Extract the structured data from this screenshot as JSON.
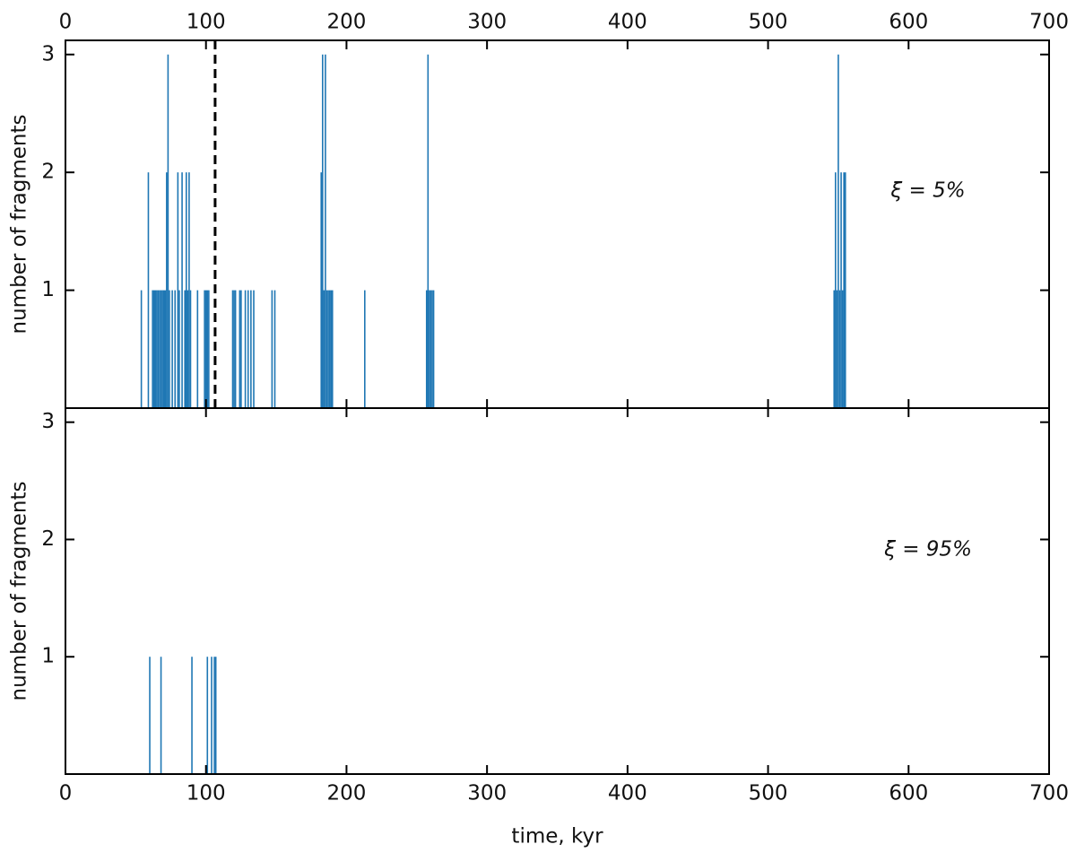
{
  "chart_data": [
    {
      "type": "bar",
      "color": "#1f77b4",
      "x": [
        54,
        59,
        62,
        63,
        64,
        65,
        66,
        67,
        68,
        69,
        70,
        71,
        72,
        73,
        74,
        76,
        78,
        80,
        81,
        83,
        85,
        86,
        87,
        88,
        89,
        94,
        99,
        100,
        101,
        102,
        119,
        120,
        121,
        124,
        125,
        128,
        130,
        132,
        134,
        147,
        149,
        182,
        183,
        184,
        185,
        186,
        187,
        188,
        189,
        190,
        213,
        257,
        258,
        259,
        260,
        261,
        262,
        547,
        548,
        549,
        550,
        551,
        552,
        553,
        554,
        555
      ],
      "values": [
        1,
        2,
        1,
        1,
        1,
        1,
        1,
        1,
        1,
        1,
        1,
        1,
        2,
        3,
        1,
        1,
        1,
        2,
        1,
        2,
        1,
        2,
        1,
        2,
        1,
        1,
        1,
        1,
        1,
        1,
        1,
        1,
        1,
        1,
        1,
        1,
        1,
        1,
        1,
        1,
        1,
        2,
        3,
        1,
        3,
        1,
        1,
        1,
        1,
        1,
        1,
        1,
        3,
        1,
        1,
        1,
        1,
        1,
        2,
        1,
        3,
        1,
        2,
        1,
        2,
        2
      ],
      "xlim": [
        0,
        700
      ],
      "xticks": [
        0,
        100,
        200,
        300,
        400,
        500,
        600,
        700
      ],
      "ylim": [
        0,
        3.12
      ],
      "yticks": [
        1,
        2,
        3
      ],
      "ylabel": "number of fragments",
      "annotation": "ξ = 5%",
      "vline": 106.5
    },
    {
      "type": "bar",
      "color": "#1f77b4",
      "x": [
        60,
        68,
        90,
        101,
        104,
        106,
        107
      ],
      "values": [
        1,
        1,
        1,
        1,
        1,
        1,
        1
      ],
      "xlim": [
        0,
        700
      ],
      "xticks": [
        0,
        100,
        200,
        300,
        400,
        500,
        600,
        700
      ],
      "ylim": [
        0,
        3.12
      ],
      "yticks": [
        1,
        2,
        3
      ],
      "ylabel": "number of fragments",
      "xlabel": "time, kyr",
      "annotation": "ξ = 95%"
    }
  ]
}
